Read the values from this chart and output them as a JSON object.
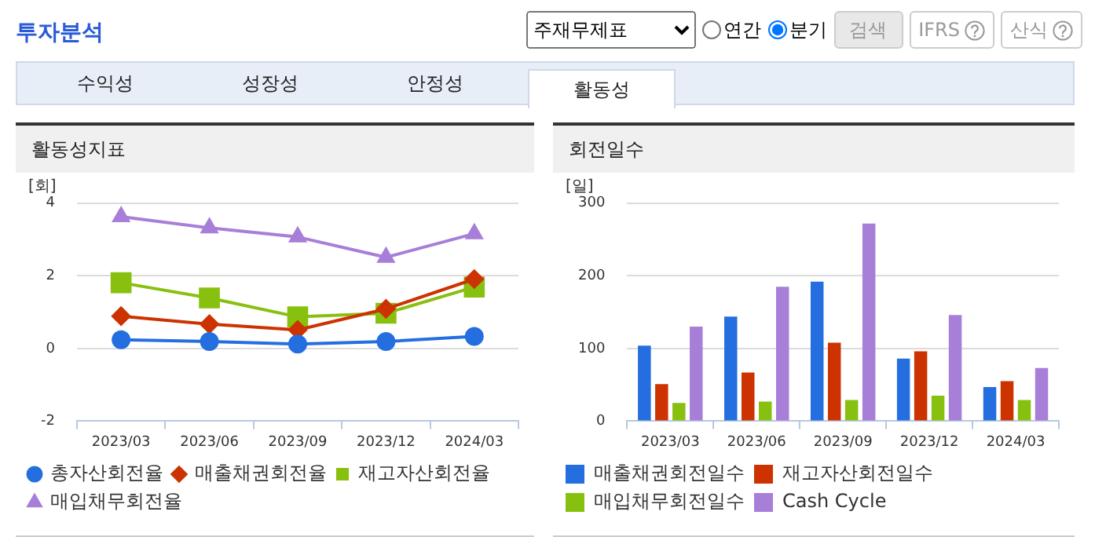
{
  "chart_data": [
    {
      "type": "line",
      "title": "활동성지표",
      "ylabel": "[회]",
      "categories": [
        "2023/03",
        "2023/06",
        "2023/09",
        "2023/12",
        "2024/03"
      ],
      "series": [
        {
          "name": "총자산회전율",
          "color": "#246ee0",
          "marker": "circle",
          "values": [
            0.24,
            0.19,
            0.12,
            0.19,
            0.33
          ]
        },
        {
          "name": "매출채권회전율",
          "color": "#cc3300",
          "marker": "diamond",
          "values": [
            0.89,
            0.67,
            0.51,
            1.09,
            1.91
          ]
        },
        {
          "name": "재고자산회전율",
          "color": "#88c010",
          "marker": "square",
          "values": [
            1.81,
            1.39,
            0.87,
            0.97,
            1.69
          ]
        },
        {
          "name": "매입채무회전율",
          "color": "#a77ed8",
          "marker": "triangle",
          "values": [
            3.63,
            3.32,
            3.07,
            2.51,
            3.16
          ]
        }
      ],
      "ylim": [
        -2,
        4
      ],
      "yticks": [
        -2,
        0,
        2,
        4
      ],
      "grid": "y",
      "legend": "bottom",
      "line_style": "solid",
      "annotations": [
        "투자분석",
        "주재무제표",
        "연간",
        "분기",
        "검색",
        "IFRS",
        "산식",
        "수익성",
        "성장성",
        "안정성",
        "활동성"
      ]
    },
    {
      "type": "bar",
      "title": "회전일수",
      "ylabel": "[일]",
      "categories": [
        "2023/03",
        "2023/06",
        "2023/09",
        "2023/12",
        "2024/03"
      ],
      "series": [
        {
          "name": "매출채권회전일수",
          "color": "#246ee0",
          "values": [
            104,
            144,
            192,
            86,
            47
          ]
        },
        {
          "name": "재고자산회전일수",
          "color": "#cc3300",
          "values": [
            51,
            67,
            108,
            96,
            55
          ]
        },
        {
          "name": "매입채무회전일수",
          "color": "#88c010",
          "values": [
            25,
            27,
            29,
            35,
            29
          ]
        },
        {
          "name": "Cash Cycle",
          "color": "#a77ed8",
          "values": [
            130,
            185,
            272,
            146,
            73
          ]
        }
      ],
      "ylim": [
        0,
        300
      ],
      "yticks": [
        0,
        100,
        200,
        300
      ],
      "grid": "y",
      "legend": "bottom"
    }
  ]
}
